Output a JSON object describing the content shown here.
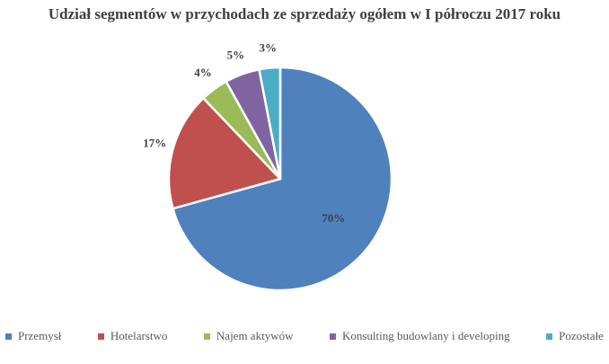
{
  "title": "Udział segmentów w przychodach ze sprzedaży ogółem w I półroczu 2017 roku",
  "chart_data": {
    "type": "pie",
    "title": "Udział segmentów w przychodach ze sprzedaży ogółem w I półroczu 2017 roku",
    "categories": [
      "Przemysł",
      "Hotelarstwo",
      "Najem aktywów",
      "Konsulting budowlany i developing",
      "Pozostałe"
    ],
    "values": [
      70,
      17,
      4,
      5,
      3
    ],
    "unit": "%",
    "labels": [
      "70%",
      "17%",
      "4%",
      "5%",
      "3%"
    ],
    "colors": [
      "#4f81bd",
      "#c0504d",
      "#9bbb59",
      "#8064a2",
      "#4bacc6"
    ],
    "slice_border_color": "#ffffff",
    "label_color": "#3f3f3f",
    "start_angle_deg": 0,
    "direction": "clockwise",
    "legend_position": "bottom",
    "title_color": "#404040",
    "legend_text_color": "#595959"
  }
}
